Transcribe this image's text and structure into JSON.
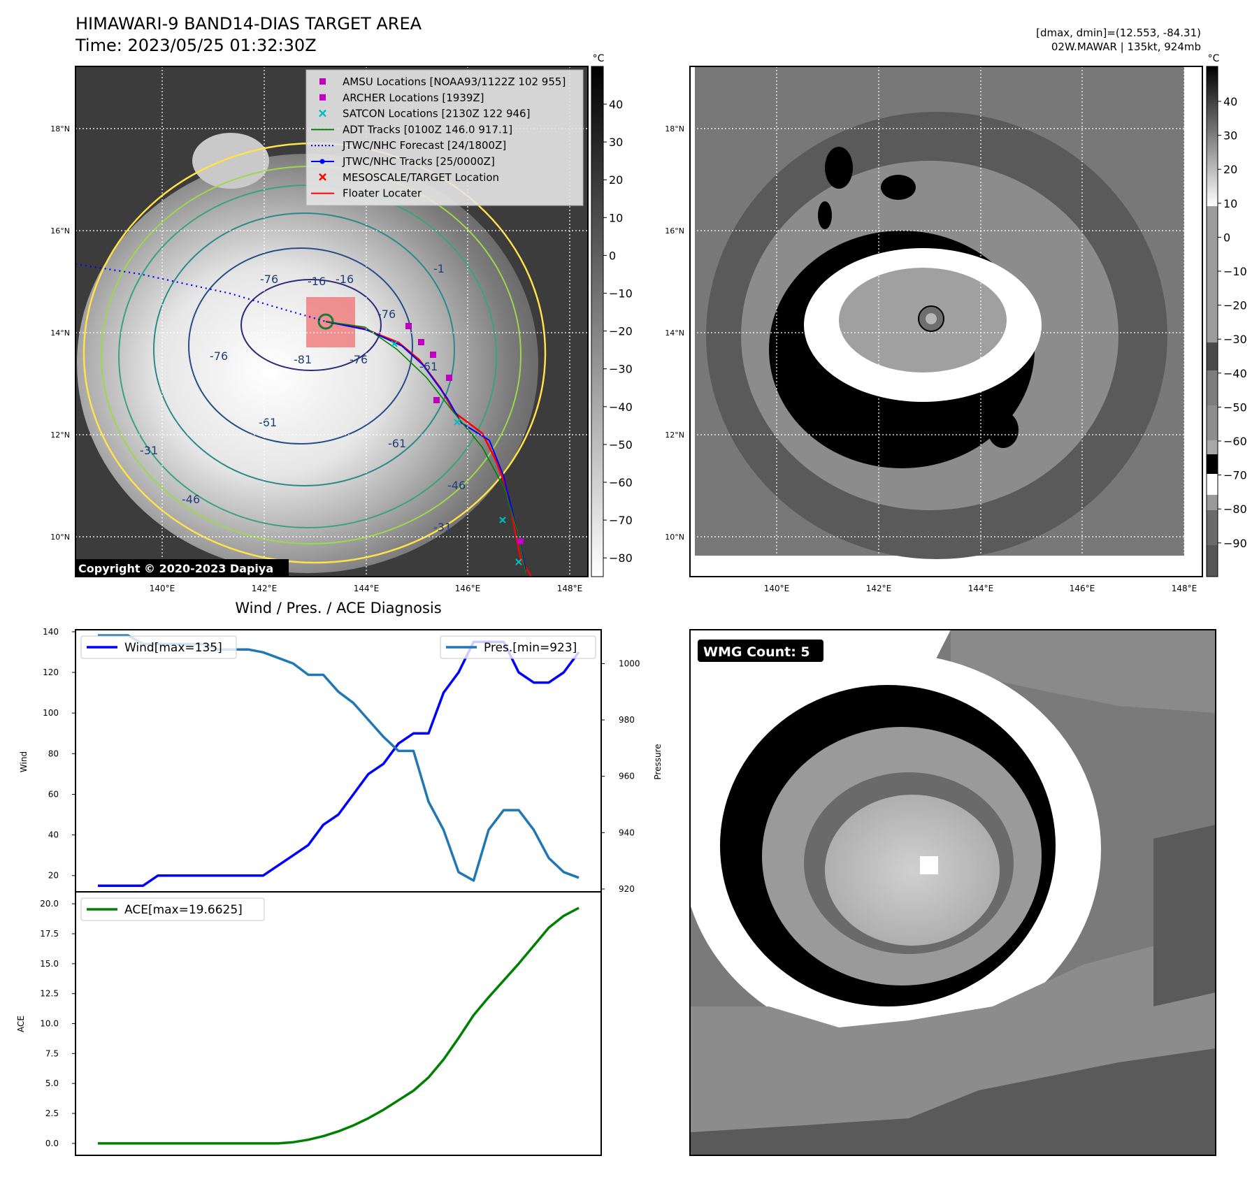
{
  "header": {
    "title_line1": "HIMAWARI-9 BAND14-DIAS TARGET AREA",
    "title_line2": "Time: 2023/05/25 01:32:30Z",
    "stats_line1": "[dmax, dmin]=(12.553, -84.31)",
    "stats_line2": "02W.MAWAR | 135kt, 924mb"
  },
  "map_panel": {
    "lat_ticks": [
      "18°N",
      "16°N",
      "14°N",
      "12°N",
      "10°N"
    ],
    "lon_ticks": [
      "140°E",
      "142°E",
      "144°E",
      "146°E",
      "148°E"
    ],
    "copyright": "Copyright © 2020-2023 Dapiya",
    "legend": [
      {
        "label": "AMSU Locations [NOAA93/1122Z 102 955]",
        "marker": "square",
        "color": "#c000c0"
      },
      {
        "label": "ARCHER Locations [1939Z]",
        "marker": "square",
        "color": "#c000c0"
      },
      {
        "label": "SATCON Locations [2130Z 122 946]",
        "marker": "x",
        "color": "#00bfbf"
      },
      {
        "label": "ADT Tracks [0100Z 146.0 917.1]",
        "marker": "line",
        "color": "#008000"
      },
      {
        "label": "JTWC/NHC Forecast [24/1800Z]",
        "marker": "dotted",
        "color": "#0000ff"
      },
      {
        "label": "JTWC/NHC Tracks [25/0000Z]",
        "marker": "line-dot",
        "color": "#0000ff"
      },
      {
        "label": "MESOSCALE/TARGET Location",
        "marker": "x",
        "color": "#ff0000"
      },
      {
        "label": "Floater Locater",
        "marker": "line",
        "color": "#ff0000"
      }
    ],
    "contour_labels": [
      "-76",
      "-76",
      "-81",
      "-76",
      "-76",
      "-61",
      "-61",
      "-61",
      "-46",
      "-46",
      "-31",
      "-31",
      "-16",
      "-16",
      "-1"
    ],
    "colorbar_unit": "°C",
    "colorbar_ticks": [
      "40",
      "30",
      "20",
      "10",
      "0",
      "−10",
      "−20",
      "−30",
      "−40",
      "−50",
      "−60",
      "−70",
      "−80"
    ]
  },
  "eye_panel": {
    "lat_ticks": [
      "18°N",
      "16°N",
      "14°N",
      "12°N",
      "10°N"
    ],
    "lon_ticks": [
      "140°E",
      "142°E",
      "144°E",
      "146°E",
      "148°E"
    ],
    "colorbar_unit": "°C",
    "colorbar_ticks": [
      "40",
      "30",
      "20",
      "10",
      "0",
      "−10",
      "−20",
      "−30",
      "−40",
      "−50",
      "−60",
      "−70",
      "−80",
      "−90"
    ]
  },
  "diagnosis_title": "Wind / Pres. / ACE Diagnosis",
  "wmg_label": "WMG Count: 5",
  "chart_data": [
    {
      "type": "line",
      "title": "Wind / Pres. / ACE Diagnosis",
      "x_index": [
        0,
        1,
        2,
        3,
        4,
        5,
        6,
        7,
        8,
        9,
        10,
        11,
        12,
        13,
        14,
        15,
        16,
        17,
        18,
        19,
        20,
        21,
        22,
        23,
        24,
        25,
        26,
        27,
        28,
        29,
        30,
        31,
        32
      ],
      "ylabel": "Wind",
      "y2label": "Pressure",
      "ylim": [
        12,
        141
      ],
      "yticks": [
        20,
        40,
        60,
        80,
        100,
        120,
        140
      ],
      "y2lim": [
        919,
        1012
      ],
      "y2ticks": [
        920,
        940,
        960,
        980,
        1000
      ],
      "series": [
        {
          "name": "Wind[max=135]",
          "axis": "left",
          "color": "#0000ff",
          "values": [
            15,
            15,
            15,
            15,
            20,
            20,
            20,
            20,
            20,
            20,
            20,
            20,
            25,
            30,
            35,
            45,
            50,
            60,
            70,
            75,
            85,
            90,
            90,
            110,
            120,
            135,
            135,
            135,
            120,
            115,
            115,
            120,
            130
          ]
        },
        {
          "name": "Pres.[min=923]",
          "axis": "right",
          "color": "#1f77b4",
          "values": [
            1010,
            1010,
            1010,
            1007,
            1007,
            1007,
            1007,
            1007,
            1005,
            1005,
            1005,
            1004,
            1002,
            1000,
            996,
            996,
            990,
            986,
            980,
            974,
            969,
            969,
            951,
            941,
            926,
            923,
            941,
            948,
            948,
            941,
            931,
            926,
            924
          ]
        }
      ],
      "legend_positions": [
        "top-left",
        "top-right"
      ]
    },
    {
      "type": "line",
      "x_index": [
        0,
        1,
        2,
        3,
        4,
        5,
        6,
        7,
        8,
        9,
        10,
        11,
        12,
        13,
        14,
        15,
        16,
        17,
        18,
        19,
        20,
        21,
        22,
        23,
        24,
        25,
        26,
        27,
        28,
        29,
        30,
        31,
        32
      ],
      "ylabel": "ACE",
      "ylim": [
        -1,
        21
      ],
      "yticks": [
        0.0,
        2.5,
        5.0,
        7.5,
        10.0,
        12.5,
        15.0,
        17.5,
        20.0
      ],
      "series": [
        {
          "name": "ACE[max=19.6625]",
          "color": "#008000",
          "values": [
            0,
            0,
            0,
            0,
            0,
            0,
            0,
            0,
            0,
            0,
            0,
            0,
            0,
            0.1,
            0.3,
            0.6,
            1.0,
            1.5,
            2.1,
            2.8,
            3.6,
            4.4,
            5.5,
            7.0,
            8.8,
            10.7,
            12.2,
            13.6,
            15.0,
            16.5,
            18.0,
            19.0,
            19.66
          ]
        }
      ],
      "legend_positions": [
        "top-left"
      ]
    }
  ]
}
